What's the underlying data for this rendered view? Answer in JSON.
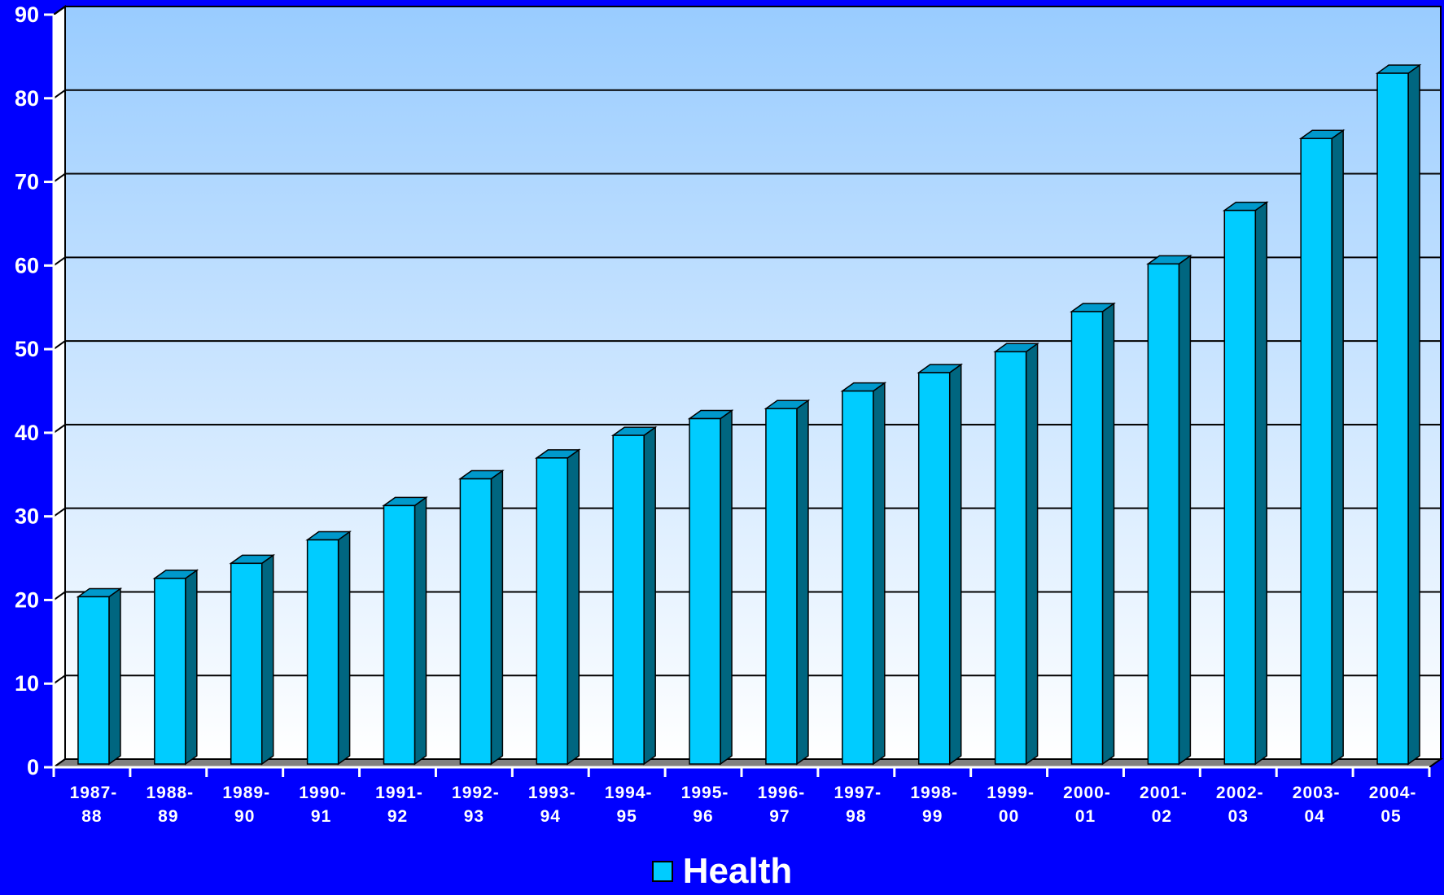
{
  "chart_data": {
    "type": "bar",
    "categories": [
      [
        "1987-",
        "88"
      ],
      [
        "1988-",
        "89"
      ],
      [
        "1989-",
        "90"
      ],
      [
        "1990-",
        "91"
      ],
      [
        "1991-",
        "92"
      ],
      [
        "1992-",
        "93"
      ],
      [
        "1993-",
        "94"
      ],
      [
        "1994-",
        "95"
      ],
      [
        "1995-",
        "96"
      ],
      [
        "1996-",
        "97"
      ],
      [
        "1997-",
        "98"
      ],
      [
        "1998-",
        "99"
      ],
      [
        "1999-",
        "00"
      ],
      [
        "2000-",
        "01"
      ],
      [
        "2001-",
        "02"
      ],
      [
        "2002-",
        "03"
      ],
      [
        "2003-",
        "04"
      ],
      [
        "2004-",
        "05"
      ]
    ],
    "series": [
      {
        "name": "Health",
        "values": [
          20,
          22.2,
          24,
          26.8,
          30.9,
          34.1,
          36.6,
          39.3,
          41.3,
          42.5,
          44.6,
          46.8,
          49.3,
          54.1,
          59.8,
          66.2,
          74.8,
          82.6
        ]
      }
    ],
    "ylim": [
      0,
      90
    ],
    "yticks": [
      0,
      10,
      20,
      30,
      40,
      50,
      60,
      70,
      80,
      90
    ],
    "grid": true,
    "legend_position": "bottom-center",
    "colors": {
      "background": "#0000ff",
      "bar_front": "#00ccff",
      "bar_side": "#006680",
      "bar_top": "#0099cc",
      "plot_top": "#99ccff",
      "plot_bottom": "#ffffff",
      "floor": "#808080"
    }
  },
  "legend": {
    "label": "Health"
  }
}
